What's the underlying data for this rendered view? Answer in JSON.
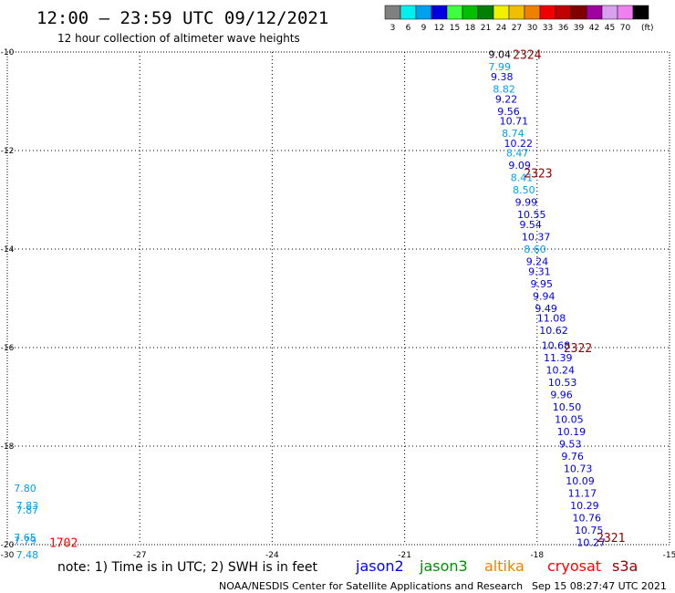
{
  "header": {
    "title": "12:00 – 23:59 UTC 09/12/2021",
    "subtitle": "12 hour collection of altimeter wave heights"
  },
  "colorbar": {
    "unit_label": "(ft)",
    "entries": [
      {
        "label": "3",
        "color": "#808080"
      },
      {
        "label": "6",
        "color": "#00f0f0"
      },
      {
        "label": "9",
        "color": "#00a0f0"
      },
      {
        "label": "12",
        "color": "#0000e0"
      },
      {
        "label": "15",
        "color": "#40ff40"
      },
      {
        "label": "18",
        "color": "#00c000"
      },
      {
        "label": "21",
        "color": "#008000"
      },
      {
        "label": "24",
        "color": "#f0f000"
      },
      {
        "label": "27",
        "color": "#f0c000"
      },
      {
        "label": "30",
        "color": "#f08000"
      },
      {
        "label": "33",
        "color": "#f00000"
      },
      {
        "label": "36",
        "color": "#c00000"
      },
      {
        "label": "39",
        "color": "#800000"
      },
      {
        "label": "42",
        "color": "#a000a0"
      },
      {
        "label": "45",
        "color": "#d8a0f0"
      },
      {
        "label": "70",
        "color": "#f080f0"
      },
      {
        "label": "",
        "color": "#000000"
      }
    ]
  },
  "footer": {
    "note": "note: 1) Time is in UTC; 2) SWH is in feet",
    "credit": "NOAA/NESDIS Center for Satellite Applications and Research",
    "timestamp": "Sep 15 08:27:47 UTC 2021"
  },
  "legend": [
    {
      "label": "jason2",
      "color": "#0000ff"
    },
    {
      "label": "jason3",
      "color": "#009000"
    },
    {
      "label": "altika",
      "color": "#f08000"
    },
    {
      "label": "cryosat",
      "color": "#ff0000"
    },
    {
      "label": "s3a",
      "color": "#900000"
    }
  ],
  "chart_data": {
    "type": "scatter",
    "xlim": [
      -30,
      -15
    ],
    "ylim": [
      -20,
      -10
    ],
    "x_ticks": [
      -30,
      -27,
      -24,
      -21,
      -18,
      -15
    ],
    "y_ticks": [
      -10,
      -12,
      -14,
      -16,
      -18,
      -20
    ],
    "x_tick_labels": [
      "-30",
      "-27",
      "-24",
      "-21",
      "-18",
      "-15"
    ],
    "y_tick_labels": [
      "-10",
      "-12",
      "-14",
      "-16",
      "-18",
      "-20"
    ],
    "grid": true,
    "labels": [
      {
        "x": -19.1,
        "y": -10.05,
        "text": "9.04",
        "color": "#000000"
      },
      {
        "x": -19.1,
        "y": -10.3,
        "text": "7.99",
        "color": "#00a0f0"
      },
      {
        "x": -19.05,
        "y": -10.5,
        "text": "9.38",
        "color": "#0000e0"
      },
      {
        "x": -19.0,
        "y": -10.75,
        "text": "8.82",
        "color": "#00a0f0"
      },
      {
        "x": -18.95,
        "y": -10.95,
        "text": "9.22",
        "color": "#0000e0"
      },
      {
        "x": -18.9,
        "y": -11.2,
        "text": "9.56",
        "color": "#0000e0"
      },
      {
        "x": -18.85,
        "y": -11.4,
        "text": "10.71",
        "color": "#0000e0"
      },
      {
        "x": -18.8,
        "y": -11.65,
        "text": "8.74",
        "color": "#00a0f0"
      },
      {
        "x": -18.75,
        "y": -11.85,
        "text": "10.22",
        "color": "#0000e0"
      },
      {
        "x": -18.7,
        "y": -12.05,
        "text": "8.47",
        "color": "#00a0f0"
      },
      {
        "x": -18.65,
        "y": -12.3,
        "text": "9.09",
        "color": "#0000e0"
      },
      {
        "x": -18.6,
        "y": -12.55,
        "text": "8.41",
        "color": "#00a0f0"
      },
      {
        "x": -18.55,
        "y": -12.8,
        "text": "8.50",
        "color": "#00a0f0"
      },
      {
        "x": -18.5,
        "y": -13.05,
        "text": "9.99",
        "color": "#0000e0"
      },
      {
        "x": -18.45,
        "y": -13.3,
        "text": "10.55",
        "color": "#0000e0"
      },
      {
        "x": -18.4,
        "y": -13.5,
        "text": "9.54",
        "color": "#0000e0"
      },
      {
        "x": -18.35,
        "y": -13.75,
        "text": "10.37",
        "color": "#0000e0"
      },
      {
        "x": -18.3,
        "y": -14.0,
        "text": "8.60",
        "color": "#00a0f0"
      },
      {
        "x": -18.25,
        "y": -14.25,
        "text": "9.24",
        "color": "#0000e0"
      },
      {
        "x": -18.2,
        "y": -14.45,
        "text": "9.31",
        "color": "#0000e0"
      },
      {
        "x": -18.15,
        "y": -14.7,
        "text": "9.95",
        "color": "#0000e0"
      },
      {
        "x": -18.1,
        "y": -14.95,
        "text": "9.94",
        "color": "#0000e0"
      },
      {
        "x": -18.05,
        "y": -15.2,
        "text": "9.49",
        "color": "#0000e0"
      },
      {
        "x": -18.0,
        "y": -15.4,
        "text": "11.08",
        "color": "#0000e0"
      },
      {
        "x": -17.95,
        "y": -15.65,
        "text": "10.62",
        "color": "#0000e0"
      },
      {
        "x": -17.9,
        "y": -15.95,
        "text": "10.68",
        "color": "#0000e0"
      },
      {
        "x": -17.85,
        "y": -16.2,
        "text": "11.39",
        "color": "#0000e0"
      },
      {
        "x": -17.8,
        "y": -16.45,
        "text": "10.24",
        "color": "#0000e0"
      },
      {
        "x": -17.75,
        "y": -16.7,
        "text": "10.53",
        "color": "#0000e0"
      },
      {
        "x": -17.7,
        "y": -16.95,
        "text": "9.96",
        "color": "#0000e0"
      },
      {
        "x": -17.65,
        "y": -17.2,
        "text": "10.50",
        "color": "#0000e0"
      },
      {
        "x": -17.6,
        "y": -17.45,
        "text": "10.05",
        "color": "#0000e0"
      },
      {
        "x": -17.55,
        "y": -17.7,
        "text": "10.19",
        "color": "#0000e0"
      },
      {
        "x": -17.5,
        "y": -17.95,
        "text": "9.53",
        "color": "#0000e0"
      },
      {
        "x": -17.45,
        "y": -18.2,
        "text": "9.76",
        "color": "#0000e0"
      },
      {
        "x": -17.4,
        "y": -18.45,
        "text": "10.73",
        "color": "#0000e0"
      },
      {
        "x": -17.35,
        "y": -18.7,
        "text": "10.09",
        "color": "#0000e0"
      },
      {
        "x": -17.3,
        "y": -18.95,
        "text": "11.17",
        "color": "#0000e0"
      },
      {
        "x": -17.25,
        "y": -19.2,
        "text": "10.29",
        "color": "#0000e0"
      },
      {
        "x": -17.2,
        "y": -19.45,
        "text": "10.76",
        "color": "#0000e0"
      },
      {
        "x": -17.15,
        "y": -19.7,
        "text": "10.75",
        "color": "#0000e0"
      },
      {
        "x": -17.1,
        "y": -19.95,
        "text": "10.27",
        "color": "#0000e0"
      },
      {
        "x": -29.85,
        "y": -18.85,
        "text": "7.80",
        "color": "#00a0f0"
      },
      {
        "x": -29.8,
        "y": -19.2,
        "text": "7.83",
        "color": "#00a0f0"
      },
      {
        "x": -29.8,
        "y": -19.3,
        "text": "7.87",
        "color": "#00a0f0"
      },
      {
        "x": -29.85,
        "y": -19.85,
        "text": "7.65",
        "color": "#00a0f0"
      },
      {
        "x": -29.85,
        "y": -19.92,
        "text": "7.79",
        "color": "#00a0f0"
      },
      {
        "x": -29.8,
        "y": -20.2,
        "text": "7.48",
        "color": "#00a0f0"
      }
    ],
    "pass_labels": [
      {
        "x": -18.55,
        "y": -10.05,
        "text": "2324",
        "color": "#900000"
      },
      {
        "x": -18.3,
        "y": -12.45,
        "text": "2323",
        "color": "#900000"
      },
      {
        "x": -17.4,
        "y": -16.0,
        "text": "2322",
        "color": "#900000"
      },
      {
        "x": -16.65,
        "y": -19.85,
        "text": "2321",
        "color": "#900000"
      },
      {
        "x": -29.05,
        "y": -19.95,
        "text": "1702",
        "color": "#ff0000"
      }
    ]
  }
}
